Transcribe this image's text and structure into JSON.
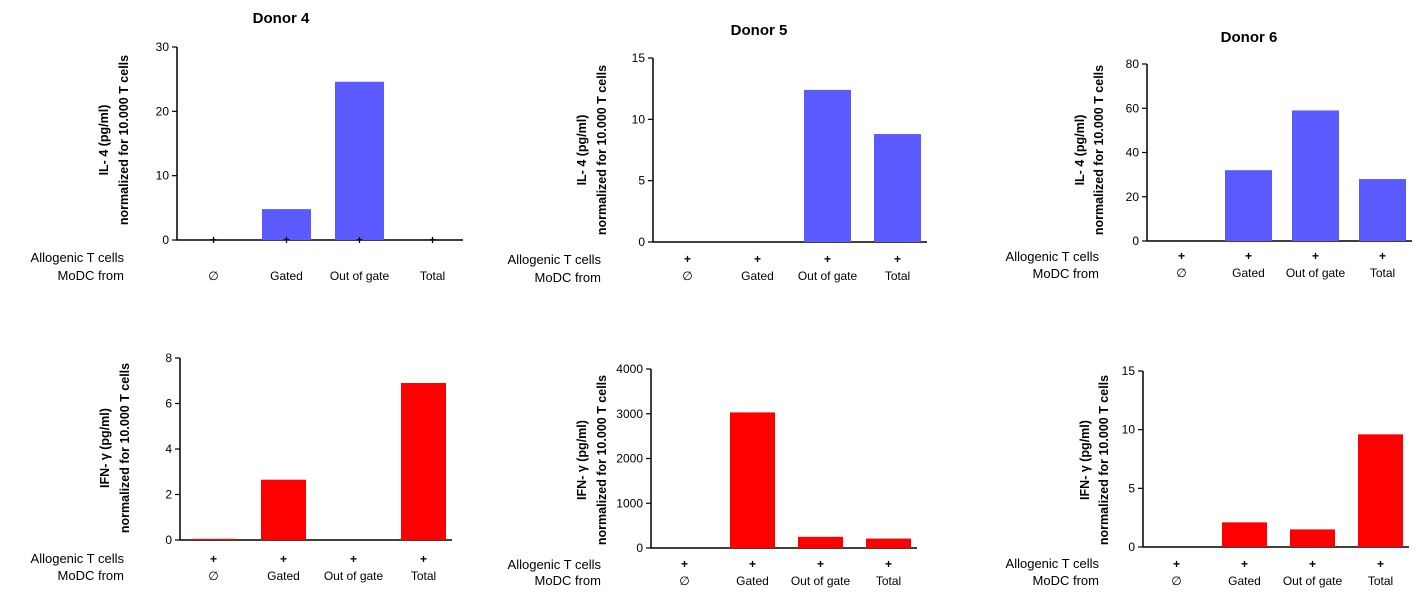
{
  "figure": {
    "row_labels": [
      "Allogenic T cells",
      "MoDC from"
    ],
    "plus_symbol": "+"
  },
  "chart_data": [
    {
      "type": "bar",
      "title": "Donor 4",
      "ylabel": [
        "IL- 4 (pg/ml)",
        "normalized for 10.000 T cells"
      ],
      "categories": [
        "∅",
        "Gated",
        "Out of gate",
        "Total"
      ],
      "values": [
        0,
        4.8,
        24.6,
        0
      ],
      "ylim": [
        0,
        30
      ],
      "yticks": [
        0,
        10,
        20,
        30
      ],
      "color": "#5a5aff"
    },
    {
      "type": "bar",
      "title": "Donor 5",
      "ylabel": [
        "IL- 4 (pg/ml)",
        "normalized for 10.000 T cells"
      ],
      "categories": [
        "∅",
        "Gated",
        "Out of gate",
        "Total"
      ],
      "values": [
        0,
        0,
        12.4,
        8.8
      ],
      "ylim": [
        0,
        15
      ],
      "yticks": [
        0,
        5,
        10,
        15
      ],
      "color": "#5a5aff"
    },
    {
      "type": "bar",
      "title": "Donor 6",
      "ylabel": [
        "IL- 4 (pg/ml)",
        "normalized for 10.000 T cells"
      ],
      "categories": [
        "∅",
        "Gated",
        "Out of gate",
        "Total"
      ],
      "values": [
        0,
        32,
        59,
        28
      ],
      "ylim": [
        0,
        80
      ],
      "yticks": [
        0,
        20,
        40,
        60,
        80
      ],
      "color": "#5a5aff"
    },
    {
      "type": "bar",
      "title": "",
      "ylabel": [
        "IFN- γ (pg/ml)",
        "normalized for 10.000 T cells"
      ],
      "categories": [
        "∅",
        "Gated",
        "Out of gate",
        "Total"
      ],
      "values": [
        0.05,
        2.65,
        0,
        6.9
      ],
      "ylim": [
        0,
        8
      ],
      "yticks": [
        0,
        2,
        4,
        6,
        8
      ],
      "color": "#ff0000"
    },
    {
      "type": "bar",
      "title": "",
      "ylabel": [
        "IFN- γ (pg/ml)",
        "normalized for 10.000 T cells"
      ],
      "categories": [
        "∅",
        "Gated",
        "Out of gate",
        "Total"
      ],
      "values": [
        0,
        3030,
        250,
        210
      ],
      "ylim": [
        0,
        4000
      ],
      "yticks": [
        0,
        1000,
        2000,
        3000,
        4000
      ],
      "color": "#ff0000"
    },
    {
      "type": "bar",
      "title": "",
      "ylabel": [
        "IFN- γ (pg/ml)",
        "normalized for 10.000 T cells"
      ],
      "categories": [
        "∅",
        "Gated",
        "Out of gate",
        "Total"
      ],
      "values": [
        0,
        2.1,
        1.5,
        9.6
      ],
      "ylim": [
        0,
        15
      ],
      "yticks": [
        0,
        5,
        10,
        15
      ],
      "color": "#ff0000"
    }
  ]
}
